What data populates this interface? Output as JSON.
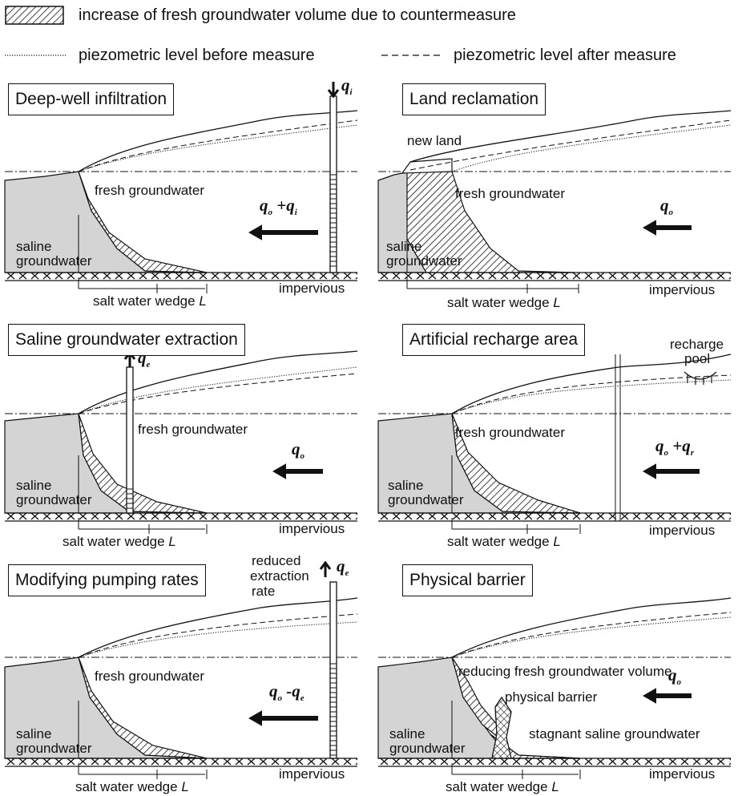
{
  "legend": {
    "hatch_label": "increase of fresh groundwater volume due to countermeasure",
    "before_label": "piezometric level before measure",
    "after_label": "piezometric level after measure"
  },
  "common": {
    "fresh": "fresh groundwater",
    "saline_1": "saline",
    "saline_2": "groundwater",
    "impervious": "impervious",
    "wedge": "salt water wedge",
    "wedge_var": "L"
  },
  "panels": [
    {
      "title": "Deep-well infiltration",
      "flow_lhs": "q",
      "flow_lhs_sub": "o",
      "flow_op": "+",
      "flow_rhs": "q",
      "flow_rhs_sub": "i",
      "well_q": "q",
      "well_q_sub": "i"
    },
    {
      "title": "Land reclamation",
      "flow_lhs": "q",
      "flow_lhs_sub": "o",
      "extra": "new land"
    },
    {
      "title": "Saline groundwater extraction",
      "flow_lhs": "q",
      "flow_lhs_sub": "o",
      "well_q": "q",
      "well_q_sub": "e"
    },
    {
      "title": "Artificial recharge area",
      "flow_lhs": "q",
      "flow_lhs_sub": "o",
      "flow_op": "+",
      "flow_rhs": "q",
      "flow_rhs_sub": "r",
      "extra_1": "recharge",
      "extra_2": "pool"
    },
    {
      "title": "Modifying pumping rates",
      "flow_lhs": "q",
      "flow_lhs_sub": "o",
      "flow_op": "-",
      "flow_rhs": "q",
      "flow_rhs_sub": "e",
      "well_q": "q",
      "well_q_sub": "e",
      "extra_1": "reduced",
      "extra_2": "extraction",
      "extra_3": "rate"
    },
    {
      "title": "Physical barrier",
      "flow_lhs": "q",
      "flow_lhs_sub": "o",
      "extra_1": "reducing fresh groundwater volume",
      "extra_2": "physical barrier",
      "extra_3": "stagnant saline groundwater"
    }
  ]
}
